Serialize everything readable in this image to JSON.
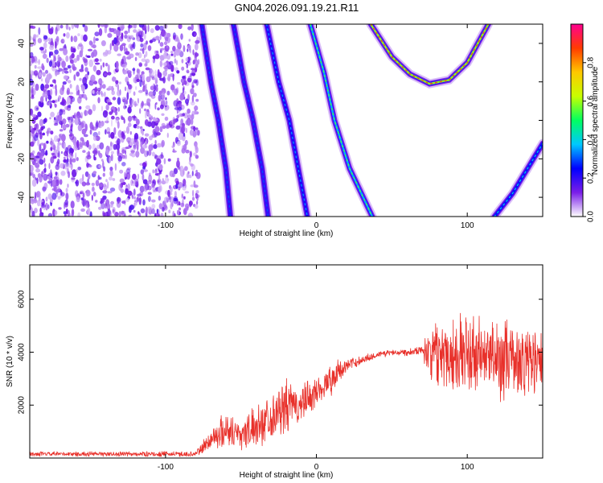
{
  "figure": {
    "title": "GN04.2026.091.19.21.R11"
  },
  "chart_data": [
    {
      "type": "heatmap",
      "xlabel": "Height of straight line (km)",
      "ylabel": "Frequency (Hz)",
      "xlim": [
        -190,
        150
      ],
      "ylim": [
        -50,
        50
      ],
      "x_ticks": [
        -100,
        0,
        100
      ],
      "y_ticks": [
        -40,
        -20,
        0,
        20,
        40
      ],
      "colorbar": {
        "label": "Normalized spectral amplitude",
        "range": [
          0,
          1
        ],
        "ticks": [
          0.0,
          0.2,
          0.4,
          0.6,
          0.8
        ],
        "tick_labels": [
          "0.0",
          "0.2",
          "0.4",
          "0.6",
          "0.8"
        ],
        "colors": [
          "#ffffff",
          "#7a1ee8",
          "#0000ff",
          "#00c8ff",
          "#00ff60",
          "#c8ff00",
          "#ffc800",
          "#ff3c00",
          "#ff0090"
        ]
      },
      "noise_region": {
        "x_range": [
          -190,
          -78
        ],
        "y_range": [
          -50,
          50
        ]
      },
      "traces": [
        {
          "name": "",
          "points": [
            [
              -76,
              50
            ],
            [
              -70,
              20
            ],
            [
              -65,
              0
            ],
            [
              -60,
              -25
            ],
            [
              -57,
              -50
            ]
          ],
          "peak_amplitude": 0.3
        },
        {
          "name": "",
          "points": [
            [
              -55,
              50
            ],
            [
              -48,
              20
            ],
            [
              -42,
              0
            ],
            [
              -36,
              -25
            ],
            [
              -32,
              -50
            ]
          ],
          "peak_amplitude": 0.3
        },
        {
          "name": "",
          "points": [
            [
              -33,
              50
            ],
            [
              -25,
              20
            ],
            [
              -18,
              0
            ],
            [
              -12,
              -25
            ],
            [
              -6,
              -50
            ]
          ],
          "peak_amplitude": 0.35
        },
        {
          "name": "",
          "points": [
            [
              -4,
              50
            ],
            [
              5,
              25
            ],
            [
              12,
              0
            ],
            [
              22,
              -25
            ],
            [
              37,
              -50
            ]
          ],
          "peak_amplitude": 0.55
        },
        {
          "name": "",
          "points": [
            [
              36,
              50
            ],
            [
              50,
              33
            ],
            [
              62,
              24
            ],
            [
              75,
              19
            ],
            [
              88,
              21
            ],
            [
              100,
              30
            ],
            [
              114,
              50
            ]
          ],
          "peak_amplitude": 0.9
        },
        {
          "name": "",
          "points": [
            [
              118,
              -50
            ],
            [
              130,
              -38
            ],
            [
              140,
              -25
            ],
            [
              150,
              -12
            ]
          ],
          "peak_amplitude": 0.4
        }
      ]
    },
    {
      "type": "line",
      "xlabel": "Height of straight line (km)",
      "ylabel": "SNR (10 * v/v)",
      "xlim": [
        -190,
        150
      ],
      "ylim": [
        0,
        7300
      ],
      "x_ticks": [
        -100,
        0,
        100
      ],
      "y_ticks": [
        2000,
        4000,
        6000
      ],
      "series": [
        {
          "name": "",
          "color": "#e8302a",
          "envelope": [
            {
              "x": -190,
              "mean": 150,
              "spread": 100
            },
            {
              "x": -80,
              "mean": 150,
              "spread": 120
            },
            {
              "x": -70,
              "mean": 700,
              "spread": 500
            },
            {
              "x": -60,
              "mean": 1100,
              "spread": 800
            },
            {
              "x": -50,
              "mean": 900,
              "spread": 700
            },
            {
              "x": -40,
              "mean": 1200,
              "spread": 900
            },
            {
              "x": -30,
              "mean": 1600,
              "spread": 1000
            },
            {
              "x": -20,
              "mean": 1900,
              "spread": 1200
            },
            {
              "x": -10,
              "mean": 2000,
              "spread": 900
            },
            {
              "x": 0,
              "mean": 2500,
              "spread": 700
            },
            {
              "x": 10,
              "mean": 3000,
              "spread": 700
            },
            {
              "x": 20,
              "mean": 3500,
              "spread": 300
            },
            {
              "x": 30,
              "mean": 3700,
              "spread": 200
            },
            {
              "x": 40,
              "mean": 3900,
              "spread": 150
            },
            {
              "x": 50,
              "mean": 4000,
              "spread": 150
            },
            {
              "x": 60,
              "mean": 4000,
              "spread": 150
            },
            {
              "x": 70,
              "mean": 4100,
              "spread": 200
            },
            {
              "x": 75,
              "mean": 4000,
              "spread": 1200
            },
            {
              "x": 90,
              "mean": 4000,
              "spread": 1800
            },
            {
              "x": 110,
              "mean": 3800,
              "spread": 1800
            },
            {
              "x": 130,
              "mean": 3700,
              "spread": 1700
            },
            {
              "x": 150,
              "mean": 3600,
              "spread": 1700
            }
          ]
        }
      ]
    }
  ]
}
